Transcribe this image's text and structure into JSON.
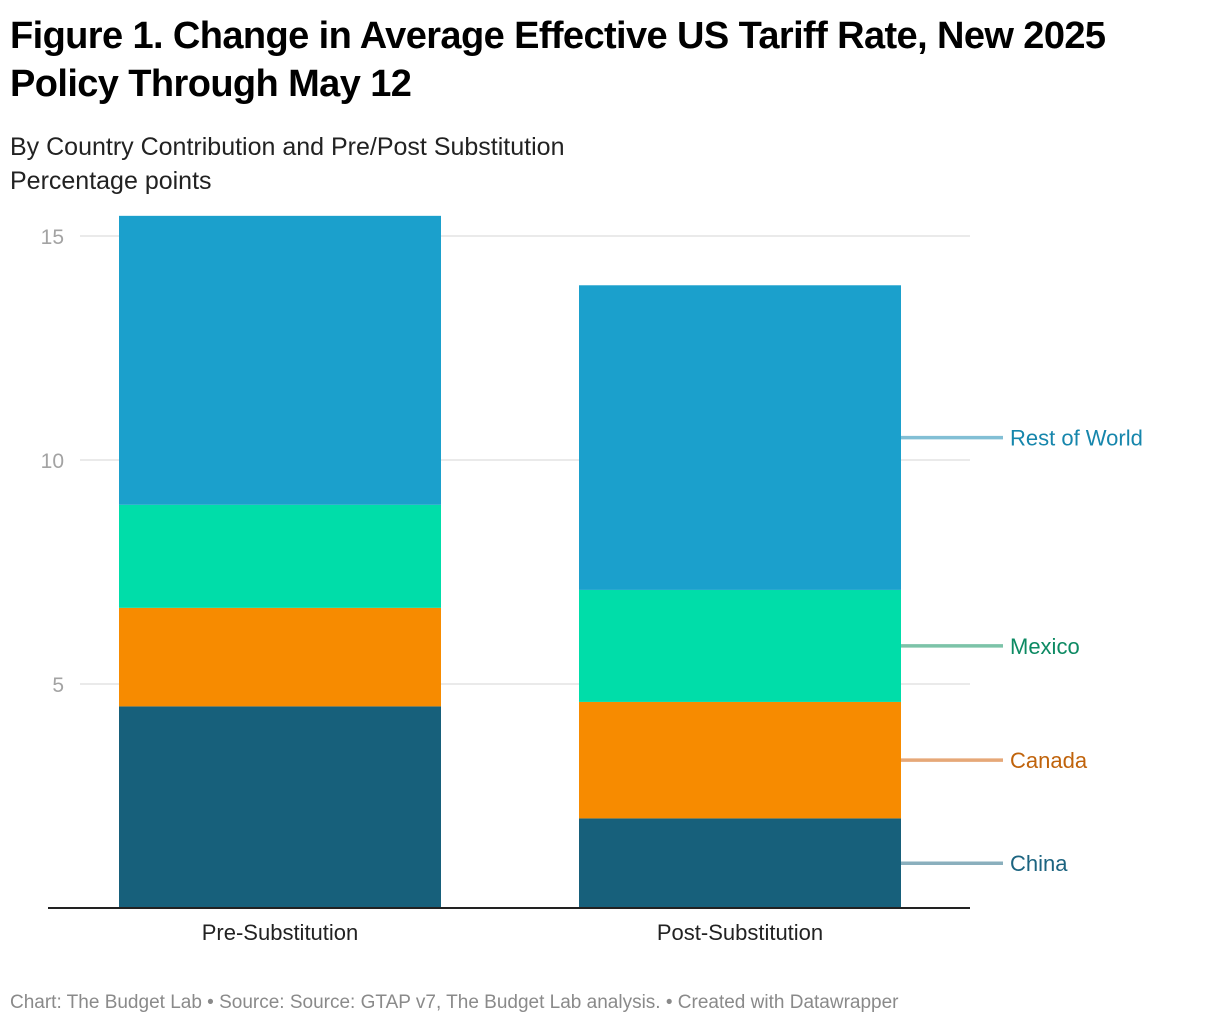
{
  "header": {
    "title": "Figure 1. Change in Average Effective US Tariff Rate, New 2025 Policy Through May 12",
    "subtitle_line1": "By Country Contribution and Pre/Post Substitution",
    "subtitle_line2": "Percentage points"
  },
  "footer": {
    "text": "Chart: The Budget Lab • Source: Source: GTAP v7, The Budget Lab analysis. • Created with Datawrapper"
  },
  "chart_data": {
    "type": "bar",
    "stacked": true,
    "title": "Figure 1. Change in Average Effective US Tariff Rate, New 2025 Policy Through May 12",
    "subtitle": "By Country Contribution and Pre/Post Substitution",
    "ylabel": "Percentage points",
    "xlabel": "",
    "categories": [
      "Pre-Substitution",
      "Post-Substitution"
    ],
    "series": [
      {
        "name": "China",
        "values": [
          4.5,
          2.0
        ],
        "color": "#17607b",
        "label_color": "#1c6480",
        "leader_color": "#8aafbd"
      },
      {
        "name": "Canada",
        "values": [
          2.2,
          2.6
        ],
        "color": "#f78b00",
        "label_color": "#c0630b",
        "leader_color": "#e6a878"
      },
      {
        "name": "Mexico",
        "values": [
          2.3,
          2.5
        ],
        "color": "#00dda9",
        "label_color": "#0d8a63",
        "leader_color": "#7cc3a8"
      },
      {
        "name": "Rest of World",
        "values": [
          6.45,
          6.8
        ],
        "color": "#1ba0cc",
        "label_color": "#1686ac",
        "leader_color": "#82bfd5"
      }
    ],
    "ylim": [
      0,
      15.45
    ],
    "yticks": [
      5,
      10,
      15
    ],
    "ytick_labels": [
      "5",
      "10",
      "15"
    ],
    "grid": true,
    "legend": "direct labels right of last bar"
  }
}
